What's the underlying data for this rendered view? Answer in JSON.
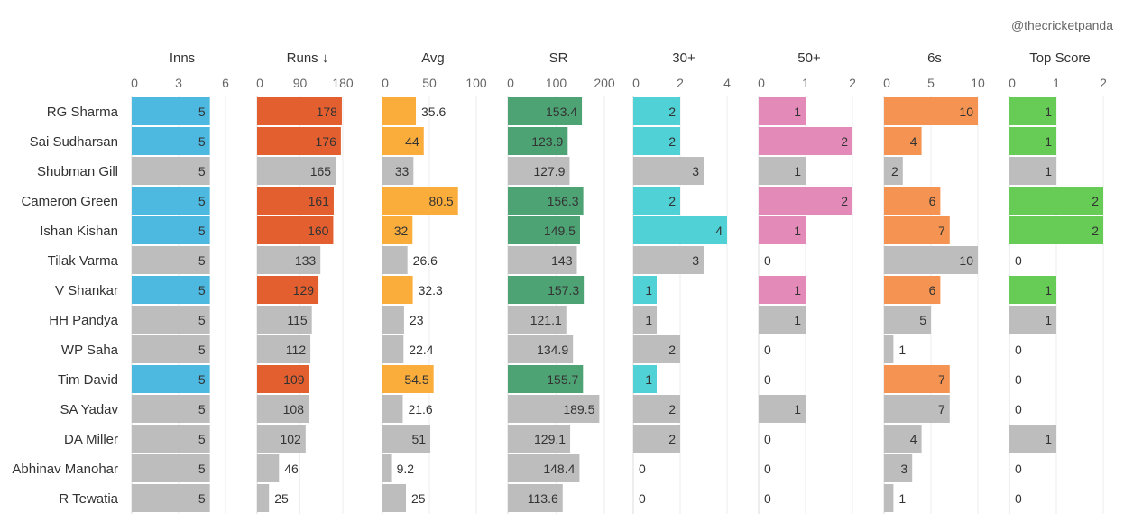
{
  "credit": "@thecricketpanda",
  "chart_data": {
    "type": "bar",
    "orientation": "horizontal",
    "title": "",
    "sort_indicator": "↓",
    "highlight_color_other": "#bdbdbd",
    "players": [
      "RG Sharma",
      "Sai Sudharsan",
      "Shubman Gill",
      "Cameron Green",
      "Ishan Kishan",
      "Tilak Varma",
      "V Shankar",
      "HH Pandya",
      "WP Saha",
      "Tim David",
      "SA Yadav",
      "DA Miller",
      "Abhinav Manohar",
      "R Tewatia"
    ],
    "highlighted": [
      true,
      true,
      false,
      true,
      true,
      false,
      true,
      false,
      false,
      true,
      false,
      false,
      false,
      false
    ],
    "columns": [
      {
        "name": "Inns",
        "sort": false,
        "color": "#4db8e0",
        "ticks": [
          0,
          3,
          6
        ],
        "ticks_label": [
          "0",
          "3",
          "6"
        ],
        "max": 6,
        "values": [
          5,
          5,
          5,
          5,
          5,
          5,
          5,
          5,
          5,
          5,
          5,
          5,
          5,
          5
        ],
        "labels": [
          "5",
          "5",
          "5",
          "5",
          "5",
          "5",
          "5",
          "5",
          "5",
          "5",
          "5",
          "5",
          "5",
          "5"
        ]
      },
      {
        "name": "Runs",
        "sort": true,
        "color": "#e35f30",
        "ticks": [
          0,
          90,
          180
        ],
        "ticks_label": [
          "0",
          "90",
          "180"
        ],
        "max": 200,
        "values": [
          178,
          176,
          165,
          161,
          160,
          133,
          129,
          115,
          112,
          109,
          108,
          102,
          46,
          25
        ],
        "labels": [
          "178",
          "176",
          "165",
          "161",
          "160",
          "133",
          "129",
          "115",
          "112",
          "109",
          "108",
          "102",
          "46",
          "25"
        ]
      },
      {
        "name": "Avg",
        "sort": false,
        "color": "#fbad3c",
        "ticks": [
          0,
          50,
          100
        ],
        "ticks_label": [
          "0",
          "50",
          "100"
        ],
        "max": 100,
        "values": [
          35.6,
          44,
          33,
          80.5,
          32,
          26.6,
          32.3,
          23,
          22.4,
          54.5,
          21.6,
          51,
          9.2,
          25
        ],
        "labels": [
          "35.6",
          "44",
          "33",
          "80.5",
          "32",
          "26.6",
          "32.3",
          "23",
          "22.4",
          "54.5",
          "21.6",
          "51",
          "9.2",
          "25"
        ]
      },
      {
        "name": "SR",
        "sort": false,
        "color": "#4ea375",
        "ticks": [
          0,
          100,
          200
        ],
        "ticks_label": [
          "0",
          "100",
          "200"
        ],
        "max": 220,
        "values": [
          153.4,
          123.9,
          127.9,
          156.3,
          149.5,
          143,
          157.3,
          121.1,
          134.9,
          155.7,
          189.5,
          129.1,
          148.4,
          113.6
        ],
        "labels": [
          "153.4",
          "123.9",
          "127.9",
          "156.3",
          "149.5",
          "143",
          "157.3",
          "121.1",
          "134.9",
          "155.7",
          "189.5",
          "129.1",
          "148.4",
          "113.6"
        ]
      },
      {
        "name": "30+",
        "sort": false,
        "color": "#4fd1d5",
        "ticks": [
          0,
          2,
          4
        ],
        "ticks_label": [
          "0",
          "2",
          "4"
        ],
        "max": 4,
        "values": [
          2,
          2,
          3,
          2,
          4,
          3,
          1,
          1,
          2,
          1,
          2,
          2,
          0,
          0
        ],
        "labels": [
          "2",
          "2",
          "3",
          "2",
          "4",
          "3",
          "1",
          "1",
          "2",
          "1",
          "2",
          "2",
          "0",
          "0"
        ]
      },
      {
        "name": "50+",
        "sort": false,
        "color": "#e48ab8",
        "ticks": [
          0,
          1,
          2
        ],
        "ticks_label": [
          "0",
          "1",
          "2"
        ],
        "max": 2,
        "values": [
          1,
          2,
          1,
          2,
          1,
          0,
          1,
          1,
          0,
          0,
          1,
          0,
          0,
          0
        ],
        "labels": [
          "1",
          "2",
          "1",
          "2",
          "1",
          "0",
          "1",
          "1",
          "0",
          "0",
          "1",
          "0",
          "0",
          "0"
        ]
      },
      {
        "name": "6s",
        "sort": false,
        "color": "#f59452",
        "ticks": [
          0,
          5,
          10
        ],
        "ticks_label": [
          "0",
          "5",
          "10"
        ],
        "max": 10,
        "values": [
          10,
          4,
          2,
          6,
          7,
          10,
          6,
          5,
          1,
          7,
          7,
          4,
          3,
          1
        ],
        "labels": [
          "10",
          "4",
          "2",
          "6",
          "7",
          "10",
          "6",
          "5",
          "1",
          "7",
          "7",
          "4",
          "3",
          "1"
        ]
      },
      {
        "name": "Top Score",
        "sort": false,
        "color": "#66cc55",
        "ticks": [
          0,
          1,
          2
        ],
        "ticks_label": [
          "0",
          "1",
          "2"
        ],
        "max": 2,
        "values": [
          1,
          1,
          1,
          2,
          2,
          0,
          1,
          1,
          0,
          0,
          0,
          1,
          0,
          0
        ],
        "labels": [
          "1",
          "1",
          "1",
          "2",
          "2",
          "0",
          "1",
          "1",
          "0",
          "0",
          "0",
          "1",
          "0",
          "0"
        ]
      }
    ]
  }
}
